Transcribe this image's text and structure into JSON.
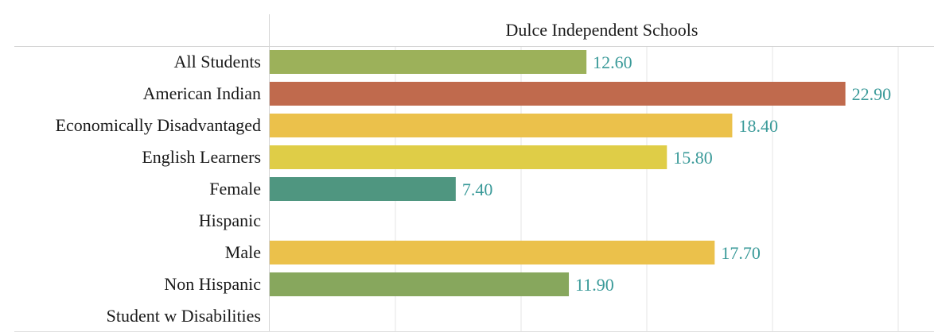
{
  "chart_data": {
    "type": "bar",
    "orientation": "horizontal",
    "title": "Dulce Independent Schools",
    "xlabel": "",
    "ylabel": "",
    "xlim": [
      0,
      25
    ],
    "grid": true,
    "categories": [
      "All Students",
      "American Indian",
      "Economically Disadvantaged",
      "English Learners",
      "Female",
      "Hispanic",
      "Male",
      "Non Hispanic",
      "Student w Disabilities"
    ],
    "values": [
      12.6,
      22.9,
      18.4,
      15.8,
      7.4,
      null,
      17.7,
      11.9,
      null
    ],
    "data_labels": [
      "12.60",
      "22.90",
      "18.40",
      "15.80",
      "7.40",
      "",
      "17.70",
      "11.90",
      ""
    ],
    "bar_colors": [
      "#9cb15a",
      "#c06a4d",
      "#ebc14b",
      "#dfcd47",
      "#4f9680",
      "",
      "#ebc14b",
      "#87a75d",
      ""
    ],
    "label_color": "#3a9a99"
  }
}
